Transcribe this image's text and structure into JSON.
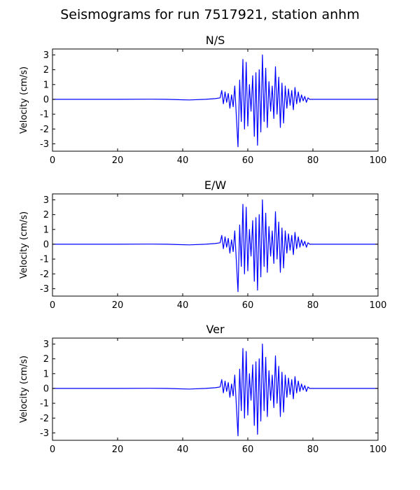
{
  "figure": {
    "title": "Seismograms for run 7517921, station anhm"
  },
  "colors": {
    "trace": "#0000ff",
    "axes": "#000000",
    "background": "#ffffff"
  },
  "chart_data": [
    {
      "type": "line",
      "title": "N/S",
      "xlabel": "",
      "ylabel": "Velocity (cm/s)",
      "xlim": [
        0,
        100
      ],
      "ylim": [
        -3.5,
        3.4
      ],
      "xticks": [
        0,
        20,
        40,
        60,
        80,
        100
      ],
      "yticks": [
        -3,
        -2,
        -1,
        0,
        1,
        2,
        3
      ],
      "grid": false,
      "series": [
        {
          "name": "",
          "x": [
            0,
            10,
            20,
            30,
            35,
            42,
            47,
            50,
            51.5,
            52,
            52.5,
            53,
            53.5,
            54,
            54.5,
            55,
            55.5,
            56,
            56.5,
            57,
            57.5,
            58,
            58.5,
            59,
            59.5,
            60,
            60.5,
            61,
            61.5,
            62,
            62.5,
            63,
            63.5,
            64,
            64.5,
            65,
            65.5,
            66,
            66.5,
            67,
            67.5,
            68,
            68.5,
            69,
            69.5,
            70,
            70.5,
            71,
            71.5,
            72,
            72.5,
            73,
            73.5,
            74,
            74.5,
            75,
            75.5,
            76,
            76.5,
            77,
            77.5,
            78,
            78.5,
            79,
            80,
            85,
            90,
            100
          ],
          "y": [
            0,
            0,
            0,
            0.01,
            0,
            -0.04,
            0,
            0.05,
            0.1,
            0.6,
            -0.3,
            0.5,
            -0.2,
            0.4,
            -0.6,
            0.3,
            -0.5,
            0.9,
            -1.2,
            -3.2,
            1.3,
            -1.5,
            2.7,
            -2.0,
            2.5,
            -1.8,
            1.0,
            -0.8,
            1.6,
            -2.5,
            1.8,
            -3.1,
            2.0,
            -2.2,
            3.0,
            -1.5,
            2.1,
            -1.9,
            1.2,
            -0.8,
            0.9,
            -1.3,
            2.2,
            -1.0,
            1.5,
            -1.9,
            1.1,
            -1.6,
            0.9,
            -0.6,
            0.7,
            -0.4,
            0.6,
            -0.7,
            0.8,
            -0.3,
            0.5,
            -0.2,
            0.3,
            -0.1,
            0.2,
            -0.2,
            0.1,
            0,
            0,
            0,
            0,
            0
          ]
        }
      ]
    },
    {
      "type": "line",
      "title": "E/W",
      "xlabel": "",
      "ylabel": "Velocity (cm/s)",
      "xlim": [
        0,
        100
      ],
      "ylim": [
        -3.5,
        3.4
      ],
      "xticks": [
        0,
        20,
        40,
        60,
        80,
        100
      ],
      "yticks": [
        -3,
        -2,
        -1,
        0,
        1,
        2,
        3
      ],
      "grid": false,
      "series": [
        {
          "name": "",
          "x": [
            0,
            10,
            20,
            30,
            35,
            42,
            47,
            50,
            51.5,
            52,
            52.5,
            53,
            53.5,
            54,
            54.5,
            55,
            55.5,
            56,
            56.5,
            57,
            57.5,
            58,
            58.5,
            59,
            59.5,
            60,
            60.5,
            61,
            61.5,
            62,
            62.5,
            63,
            63.5,
            64,
            64.5,
            65,
            65.5,
            66,
            66.5,
            67,
            67.5,
            68,
            68.5,
            69,
            69.5,
            70,
            70.5,
            71,
            71.5,
            72,
            72.5,
            73,
            73.5,
            74,
            74.5,
            75,
            75.5,
            76,
            76.5,
            77,
            77.5,
            78,
            78.5,
            79,
            80,
            85,
            90,
            100
          ],
          "y": [
            0,
            0,
            0,
            0.01,
            0,
            -0.04,
            0,
            0.05,
            0.1,
            0.6,
            -0.3,
            0.5,
            -0.2,
            0.4,
            -0.6,
            0.3,
            -0.5,
            0.9,
            -1.2,
            -3.2,
            1.3,
            -1.5,
            2.7,
            -2.0,
            2.5,
            -1.8,
            1.0,
            -0.8,
            1.6,
            -2.5,
            1.8,
            -3.1,
            2.0,
            -2.2,
            3.0,
            -1.5,
            2.1,
            -1.9,
            1.2,
            -0.8,
            0.9,
            -1.3,
            2.2,
            -1.0,
            1.5,
            -1.9,
            1.1,
            -1.6,
            0.9,
            -0.6,
            0.7,
            -0.4,
            0.6,
            -0.7,
            0.8,
            -0.3,
            0.5,
            -0.2,
            0.3,
            -0.1,
            0.2,
            -0.2,
            0.1,
            0,
            0,
            0,
            0,
            0
          ]
        }
      ]
    },
    {
      "type": "line",
      "title": "Ver",
      "xlabel": "",
      "ylabel": "Velocity (cm/s)",
      "xlim": [
        0,
        100
      ],
      "ylim": [
        -3.5,
        3.4
      ],
      "xticks": [
        0,
        20,
        40,
        60,
        80,
        100
      ],
      "yticks": [
        -3,
        -2,
        -1,
        0,
        1,
        2,
        3
      ],
      "grid": false,
      "series": [
        {
          "name": "",
          "x": [
            0,
            10,
            20,
            30,
            35,
            42,
            47,
            50,
            51.5,
            52,
            52.5,
            53,
            53.5,
            54,
            54.5,
            55,
            55.5,
            56,
            56.5,
            57,
            57.5,
            58,
            58.5,
            59,
            59.5,
            60,
            60.5,
            61,
            61.5,
            62,
            62.5,
            63,
            63.5,
            64,
            64.5,
            65,
            65.5,
            66,
            66.5,
            67,
            67.5,
            68,
            68.5,
            69,
            69.5,
            70,
            70.5,
            71,
            71.5,
            72,
            72.5,
            73,
            73.5,
            74,
            74.5,
            75,
            75.5,
            76,
            76.5,
            77,
            77.5,
            78,
            78.5,
            79,
            80,
            85,
            90,
            100
          ],
          "y": [
            0,
            0,
            0,
            0.01,
            0,
            -0.04,
            0,
            0.05,
            0.1,
            0.6,
            -0.3,
            0.5,
            -0.2,
            0.4,
            -0.6,
            0.3,
            -0.5,
            0.9,
            -1.2,
            -3.2,
            1.3,
            -1.5,
            2.7,
            -2.0,
            2.5,
            -1.8,
            1.0,
            -0.8,
            1.6,
            -2.5,
            1.8,
            -3.1,
            2.0,
            -2.2,
            3.0,
            -1.5,
            2.1,
            -1.9,
            1.2,
            -0.8,
            0.9,
            -1.3,
            2.2,
            -1.0,
            1.5,
            -1.9,
            1.1,
            -1.6,
            0.9,
            -0.6,
            0.7,
            -0.4,
            0.6,
            -0.7,
            0.8,
            -0.3,
            0.5,
            -0.2,
            0.3,
            -0.1,
            0.2,
            -0.2,
            0.1,
            0,
            0,
            0,
            0,
            0
          ]
        }
      ]
    }
  ]
}
